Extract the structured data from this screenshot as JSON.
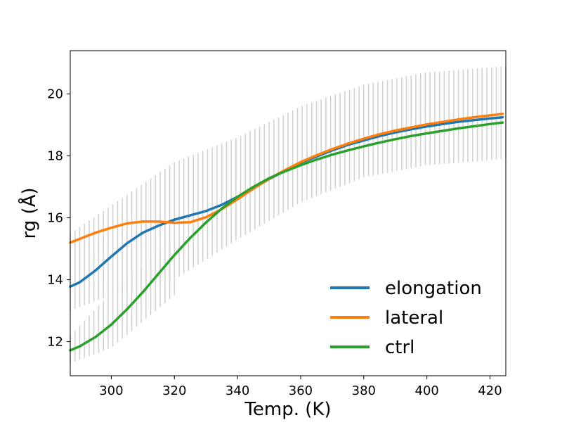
{
  "chart_data": {
    "type": "line",
    "xlabel": "Temp. (K)",
    "ylabel": "rg (Å)",
    "xlim": [
      287,
      425
    ],
    "ylim": [
      10.9,
      21.4
    ],
    "x_ticks": [
      300,
      320,
      340,
      360,
      380,
      400,
      420
    ],
    "y_ticks": [
      12,
      14,
      16,
      18,
      20
    ],
    "x_tick_labels": [
      "300",
      "320",
      "340",
      "360",
      "380",
      "400",
      "420"
    ],
    "y_tick_labels": [
      "12",
      "14",
      "16",
      "18",
      "20"
    ],
    "grid": false,
    "legend_position": "lower-right",
    "error_bar_color": "#d3d3d3",
    "error_bars": {
      "x_start": 287,
      "x_step": 1.5,
      "x_end": 425,
      "lower": [
        [
          287,
          13.0
        ],
        [
          300,
          13.5
        ],
        [
          320,
          14.0
        ],
        [
          340,
          15.3
        ],
        [
          360,
          16.5
        ],
        [
          380,
          17.3
        ],
        [
          400,
          17.7
        ],
        [
          425,
          17.9
        ]
      ],
      "upper": [
        [
          287,
          15.5
        ],
        [
          300,
          16.4
        ],
        [
          320,
          17.8
        ],
        [
          340,
          18.6
        ],
        [
          360,
          19.6
        ],
        [
          380,
          20.3
        ],
        [
          400,
          20.7
        ],
        [
          425,
          20.9
        ]
      ],
      "ctrl_lower": [
        [
          287,
          11.3
        ],
        [
          300,
          11.8
        ],
        [
          320,
          13.5
        ]
      ],
      "ctrl_upper": [
        [
          287,
          12.2
        ],
        [
          300,
          13.6
        ],
        [
          320,
          15.3
        ]
      ]
    },
    "series": [
      {
        "name": "elongation",
        "color": "#1f77b4",
        "points": [
          [
            287,
            13.78
          ],
          [
            290,
            13.92
          ],
          [
            295,
            14.3
          ],
          [
            300,
            14.75
          ],
          [
            305,
            15.18
          ],
          [
            310,
            15.52
          ],
          [
            315,
            15.75
          ],
          [
            320,
            15.94
          ],
          [
            325,
            16.08
          ],
          [
            330,
            16.22
          ],
          [
            335,
            16.42
          ],
          [
            340,
            16.68
          ],
          [
            345,
            16.96
          ],
          [
            350,
            17.25
          ],
          [
            355,
            17.52
          ],
          [
            360,
            17.78
          ],
          [
            365,
            17.98
          ],
          [
            370,
            18.18
          ],
          [
            375,
            18.36
          ],
          [
            380,
            18.5
          ],
          [
            385,
            18.64
          ],
          [
            390,
            18.76
          ],
          [
            395,
            18.86
          ],
          [
            400,
            18.95
          ],
          [
            405,
            19.03
          ],
          [
            410,
            19.1
          ],
          [
            415,
            19.16
          ],
          [
            420,
            19.21
          ],
          [
            424,
            19.25
          ]
        ]
      },
      {
        "name": "lateral",
        "color": "#ff7f0e",
        "points": [
          [
            287,
            15.2
          ],
          [
            290,
            15.32
          ],
          [
            295,
            15.52
          ],
          [
            300,
            15.68
          ],
          [
            305,
            15.82
          ],
          [
            310,
            15.88
          ],
          [
            315,
            15.88
          ],
          [
            320,
            15.84
          ],
          [
            325,
            15.86
          ],
          [
            330,
            16.02
          ],
          [
            335,
            16.28
          ],
          [
            340,
            16.6
          ],
          [
            345,
            16.94
          ],
          [
            350,
            17.26
          ],
          [
            355,
            17.54
          ],
          [
            360,
            17.8
          ],
          [
            365,
            18.02
          ],
          [
            370,
            18.22
          ],
          [
            375,
            18.4
          ],
          [
            380,
            18.56
          ],
          [
            385,
            18.7
          ],
          [
            390,
            18.82
          ],
          [
            395,
            18.92
          ],
          [
            400,
            19.02
          ],
          [
            405,
            19.1
          ],
          [
            410,
            19.18
          ],
          [
            415,
            19.25
          ],
          [
            420,
            19.31
          ],
          [
            424,
            19.36
          ]
        ]
      },
      {
        "name": "ctrl",
        "color": "#2ca02c",
        "points": [
          [
            287,
            11.72
          ],
          [
            290,
            11.85
          ],
          [
            295,
            12.15
          ],
          [
            300,
            12.55
          ],
          [
            305,
            13.05
          ],
          [
            310,
            13.6
          ],
          [
            315,
            14.2
          ],
          [
            320,
            14.8
          ],
          [
            325,
            15.35
          ],
          [
            330,
            15.85
          ],
          [
            335,
            16.3
          ],
          [
            340,
            16.68
          ],
          [
            345,
            17.0
          ],
          [
            350,
            17.28
          ],
          [
            355,
            17.5
          ],
          [
            360,
            17.7
          ],
          [
            365,
            17.88
          ],
          [
            370,
            18.04
          ],
          [
            375,
            18.18
          ],
          [
            380,
            18.31
          ],
          [
            385,
            18.43
          ],
          [
            390,
            18.54
          ],
          [
            395,
            18.64
          ],
          [
            400,
            18.73
          ],
          [
            405,
            18.81
          ],
          [
            410,
            18.89
          ],
          [
            415,
            18.96
          ],
          [
            420,
            19.03
          ],
          [
            424,
            19.08
          ]
        ]
      }
    ]
  }
}
